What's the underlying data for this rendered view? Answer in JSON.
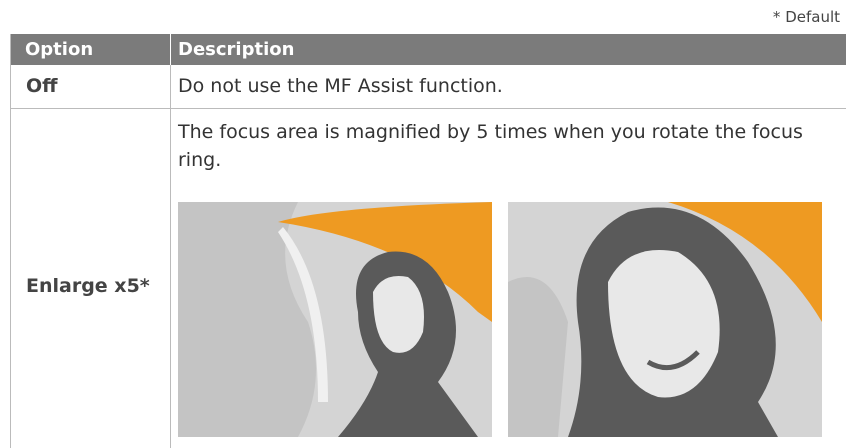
{
  "note": "* Default",
  "table": {
    "headers": [
      "Option",
      "Description"
    ],
    "rows": [
      [
        "Off",
        "Do not use the MF Assist function."
      ],
      [
        "Enlarge x5*",
        "The focus area is magnified by 5 times when you rotate the focus ring."
      ]
    ]
  }
}
